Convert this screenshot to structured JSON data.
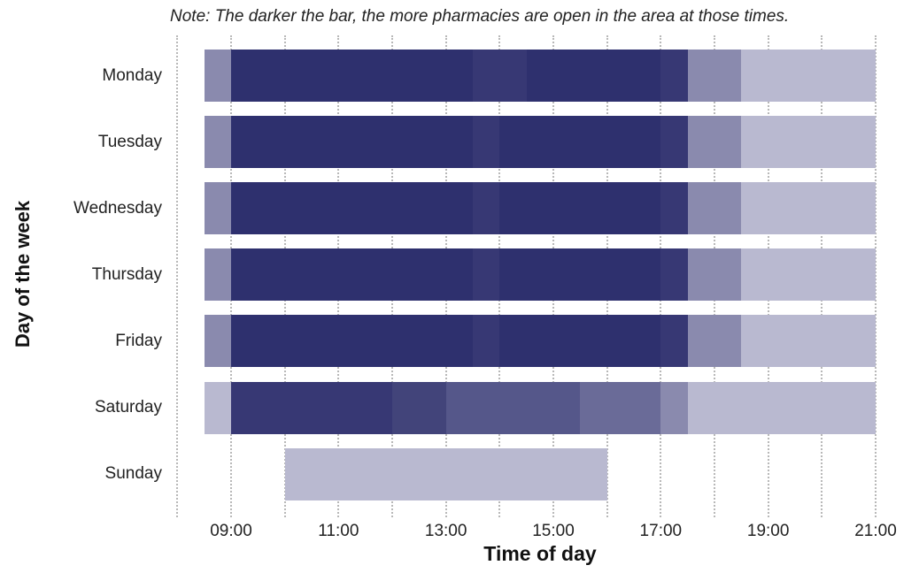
{
  "chart_data": {
    "type": "heatmap",
    "subtype": "timeline-bar",
    "title": "",
    "note": "Note: The darker the bar, the more pharmacies are open in the area at those times.",
    "xlabel": "Time of day",
    "ylabel": "Day of the week",
    "x_ticks": [
      "09:00",
      "11:00",
      "13:00",
      "15:00",
      "17:00",
      "19:00",
      "21:00"
    ],
    "xlim": [
      8,
      21
    ],
    "grid": true,
    "legend": "none",
    "colors": {
      "level1": "#b9b9d0",
      "level2": "#8a8aae",
      "level3": "#6a6b98",
      "level4": "#55578a",
      "level5": "#42447a",
      "level6": "#373874",
      "level7": "#2e306e"
    },
    "days": [
      {
        "day": "Monday",
        "segments": [
          {
            "start": 8.5,
            "end": 9,
            "level": 2
          },
          {
            "start": 9,
            "end": 13.5,
            "level": 7
          },
          {
            "start": 13.5,
            "end": 14.5,
            "level": 6
          },
          {
            "start": 14.5,
            "end": 17,
            "level": 7
          },
          {
            "start": 17,
            "end": 17.5,
            "level": 6
          },
          {
            "start": 17.5,
            "end": 18.5,
            "level": 2
          },
          {
            "start": 18.5,
            "end": 21,
            "level": 1
          }
        ]
      },
      {
        "day": "Tuesday",
        "segments": [
          {
            "start": 8.5,
            "end": 9,
            "level": 2
          },
          {
            "start": 9,
            "end": 13.5,
            "level": 7
          },
          {
            "start": 13.5,
            "end": 14,
            "level": 6
          },
          {
            "start": 14,
            "end": 17,
            "level": 7
          },
          {
            "start": 17,
            "end": 17.5,
            "level": 6
          },
          {
            "start": 17.5,
            "end": 18.5,
            "level": 2
          },
          {
            "start": 18.5,
            "end": 21,
            "level": 1
          }
        ]
      },
      {
        "day": "Wednesday",
        "segments": [
          {
            "start": 8.5,
            "end": 9,
            "level": 2
          },
          {
            "start": 9,
            "end": 13.5,
            "level": 7
          },
          {
            "start": 13.5,
            "end": 14,
            "level": 6
          },
          {
            "start": 14,
            "end": 17,
            "level": 7
          },
          {
            "start": 17,
            "end": 17.5,
            "level": 6
          },
          {
            "start": 17.5,
            "end": 18.5,
            "level": 2
          },
          {
            "start": 18.5,
            "end": 21,
            "level": 1
          }
        ]
      },
      {
        "day": "Thursday",
        "segments": [
          {
            "start": 8.5,
            "end": 9,
            "level": 2
          },
          {
            "start": 9,
            "end": 13.5,
            "level": 7
          },
          {
            "start": 13.5,
            "end": 14,
            "level": 6
          },
          {
            "start": 14,
            "end": 17,
            "level": 7
          },
          {
            "start": 17,
            "end": 17.5,
            "level": 6
          },
          {
            "start": 17.5,
            "end": 18.5,
            "level": 2
          },
          {
            "start": 18.5,
            "end": 21,
            "level": 1
          }
        ]
      },
      {
        "day": "Friday",
        "segments": [
          {
            "start": 8.5,
            "end": 9,
            "level": 2
          },
          {
            "start": 9,
            "end": 13.5,
            "level": 7
          },
          {
            "start": 13.5,
            "end": 14,
            "level": 6
          },
          {
            "start": 14,
            "end": 17,
            "level": 7
          },
          {
            "start": 17,
            "end": 17.5,
            "level": 6
          },
          {
            "start": 17.5,
            "end": 18.5,
            "level": 2
          },
          {
            "start": 18.5,
            "end": 21,
            "level": 1
          }
        ]
      },
      {
        "day": "Saturday",
        "segments": [
          {
            "start": 8.5,
            "end": 9,
            "level": 1
          },
          {
            "start": 9,
            "end": 12,
            "level": 6
          },
          {
            "start": 12,
            "end": 13,
            "level": 5
          },
          {
            "start": 13,
            "end": 15.5,
            "level": 4
          },
          {
            "start": 15.5,
            "end": 17,
            "level": 3
          },
          {
            "start": 17,
            "end": 17.5,
            "level": 2
          },
          {
            "start": 17.5,
            "end": 21,
            "level": 1
          }
        ]
      },
      {
        "day": "Sunday",
        "segments": [
          {
            "start": 10,
            "end": 16,
            "level": 1
          }
        ]
      }
    ]
  }
}
